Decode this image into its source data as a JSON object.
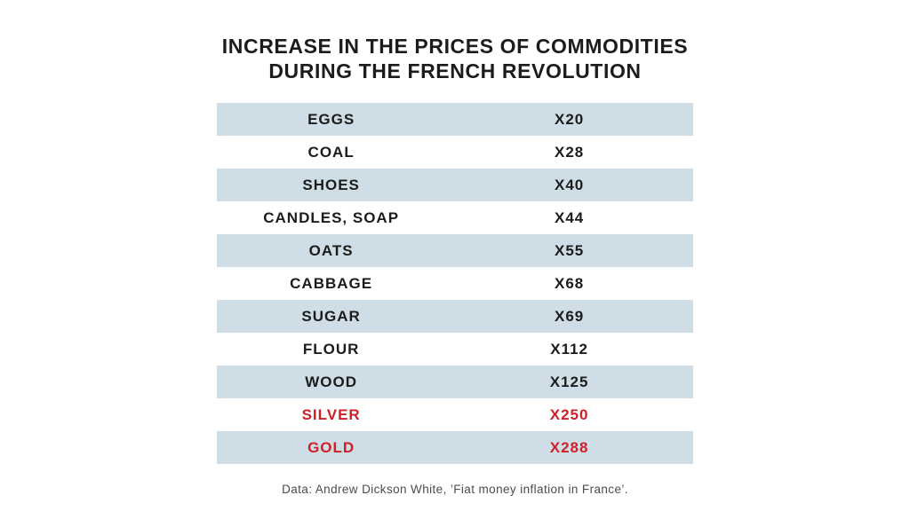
{
  "title": {
    "line1": "INCREASE IN THE PRICES OF COMMODITIES",
    "line2": "DURING THE FRENCH REVOLUTION"
  },
  "table": {
    "rows": [
      {
        "label": "EGGS",
        "value": "X20",
        "highlighted": false
      },
      {
        "label": "COAL",
        "value": "X28",
        "highlighted": false
      },
      {
        "label": "SHOES",
        "value": "X40",
        "highlighted": false
      },
      {
        "label": "CANDLES, SOAP",
        "value": "X44",
        "highlighted": false
      },
      {
        "label": "OATS",
        "value": "X55",
        "highlighted": false
      },
      {
        "label": "CABBAGE",
        "value": "X68",
        "highlighted": false
      },
      {
        "label": "SUGAR",
        "value": "X69",
        "highlighted": false
      },
      {
        "label": "FLOUR",
        "value": "X112",
        "highlighted": false
      },
      {
        "label": "WOOD",
        "value": "X125",
        "highlighted": false
      },
      {
        "label": "SILVER",
        "value": "X250",
        "highlighted": true
      },
      {
        "label": "GOLD",
        "value": "X288",
        "highlighted": true
      }
    ]
  },
  "footer": {
    "text": "Data: Andrew Dickson White, ’Fiat money inflation in France’."
  },
  "colors": {
    "background": "#ffffff",
    "row_shade": "#cfdee6",
    "text": "#1c1c1c",
    "highlight_red": "#d02027",
    "footer_text": "#4c4c4c"
  },
  "chart_data": {
    "type": "table",
    "title": "INCREASE IN THE PRICES OF COMMODITIES DURING THE FRENCH REVOLUTION",
    "categories": [
      "EGGS",
      "COAL",
      "SHOES",
      "CANDLES, SOAP",
      "OATS",
      "CABBAGE",
      "SUGAR",
      "FLOUR",
      "WOOD",
      "SILVER",
      "GOLD"
    ],
    "values": [
      20,
      28,
      40,
      44,
      55,
      68,
      69,
      112,
      125,
      250,
      288
    ],
    "value_labels": [
      "X20",
      "X28",
      "X40",
      "X44",
      "X55",
      "X68",
      "X69",
      "X112",
      "X125",
      "X250",
      "X288"
    ],
    "highlighted_categories": [
      "SILVER",
      "GOLD"
    ],
    "annotation": "Data: Andrew Dickson White, ’Fiat money inflation in France’."
  }
}
